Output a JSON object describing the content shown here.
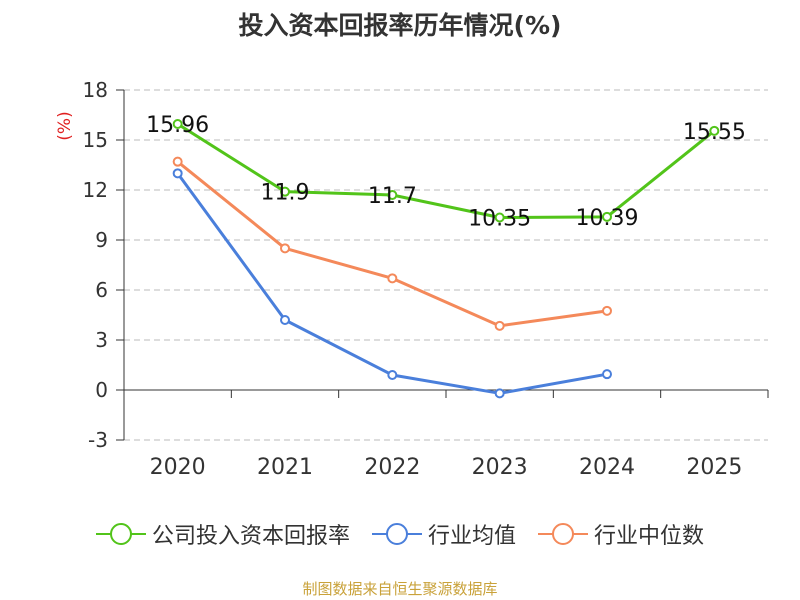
{
  "chart_data": {
    "type": "line",
    "title": "投入资本回报率历年情况(%)",
    "ylabel": "(%)",
    "xlabel": "",
    "categories": [
      "2020",
      "2021",
      "2022",
      "2023",
      "2024",
      "2025"
    ],
    "ylim": [
      -3,
      18
    ],
    "yticks": [
      -3,
      0,
      3,
      6,
      9,
      12,
      15,
      18
    ],
    "grid": true,
    "legend_position": "bottom",
    "series": [
      {
        "name": "公司投入资本回报率",
        "color": "#52c41a",
        "values": [
          15.96,
          11.9,
          11.7,
          10.35,
          10.39,
          15.55
        ],
        "labels": [
          "15.96",
          "11.9",
          "11.7",
          "10.35",
          "10.39",
          "15.55"
        ]
      },
      {
        "name": "行业均值",
        "color": "#4a7fdb",
        "values": [
          13.0,
          4.2,
          0.9,
          -0.2,
          0.95,
          null
        ]
      },
      {
        "name": "行业中位数",
        "color": "#f4895a",
        "values": [
          13.7,
          8.5,
          6.7,
          3.85,
          4.75,
          null
        ]
      }
    ]
  },
  "source": "制图数据来自恒生聚源数据库",
  "colors": {
    "axis": "#333333",
    "grid": "#bbbbbb",
    "ylabel": "#e02020",
    "source": "#c9a23a"
  }
}
